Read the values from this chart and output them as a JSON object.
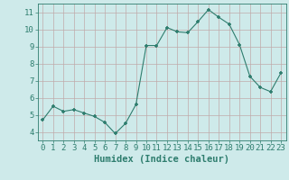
{
  "x": [
    0,
    1,
    2,
    3,
    4,
    5,
    6,
    7,
    8,
    9,
    10,
    11,
    12,
    13,
    14,
    15,
    16,
    17,
    18,
    19,
    20,
    21,
    22,
    23
  ],
  "y": [
    4.7,
    5.5,
    5.2,
    5.3,
    5.1,
    4.9,
    4.55,
    3.9,
    4.5,
    5.6,
    9.05,
    9.05,
    10.1,
    9.85,
    9.8,
    10.45,
    11.15,
    10.7,
    10.3,
    9.1,
    7.25,
    6.6,
    6.35,
    7.45
  ],
  "xlabel": "Humidex (Indice chaleur)",
  "line_color": "#2e7d6e",
  "marker_color": "#2e7d6e",
  "bg_color": "#ceeaea",
  "grid_color": "#c0aaaa",
  "axis_color": "#2e7d6e",
  "tick_label_color": "#2e7d6e",
  "xlabel_color": "#2e7d6e",
  "ylim": [
    3.5,
    11.5
  ],
  "xlim": [
    -0.5,
    23.5
  ],
  "yticks": [
    4,
    5,
    6,
    7,
    8,
    9,
    10,
    11
  ],
  "xticks": [
    0,
    1,
    2,
    3,
    4,
    5,
    6,
    7,
    8,
    9,
    10,
    11,
    12,
    13,
    14,
    15,
    16,
    17,
    18,
    19,
    20,
    21,
    22,
    23
  ],
  "tick_fontsize": 6.5,
  "xlabel_fontsize": 7.5
}
